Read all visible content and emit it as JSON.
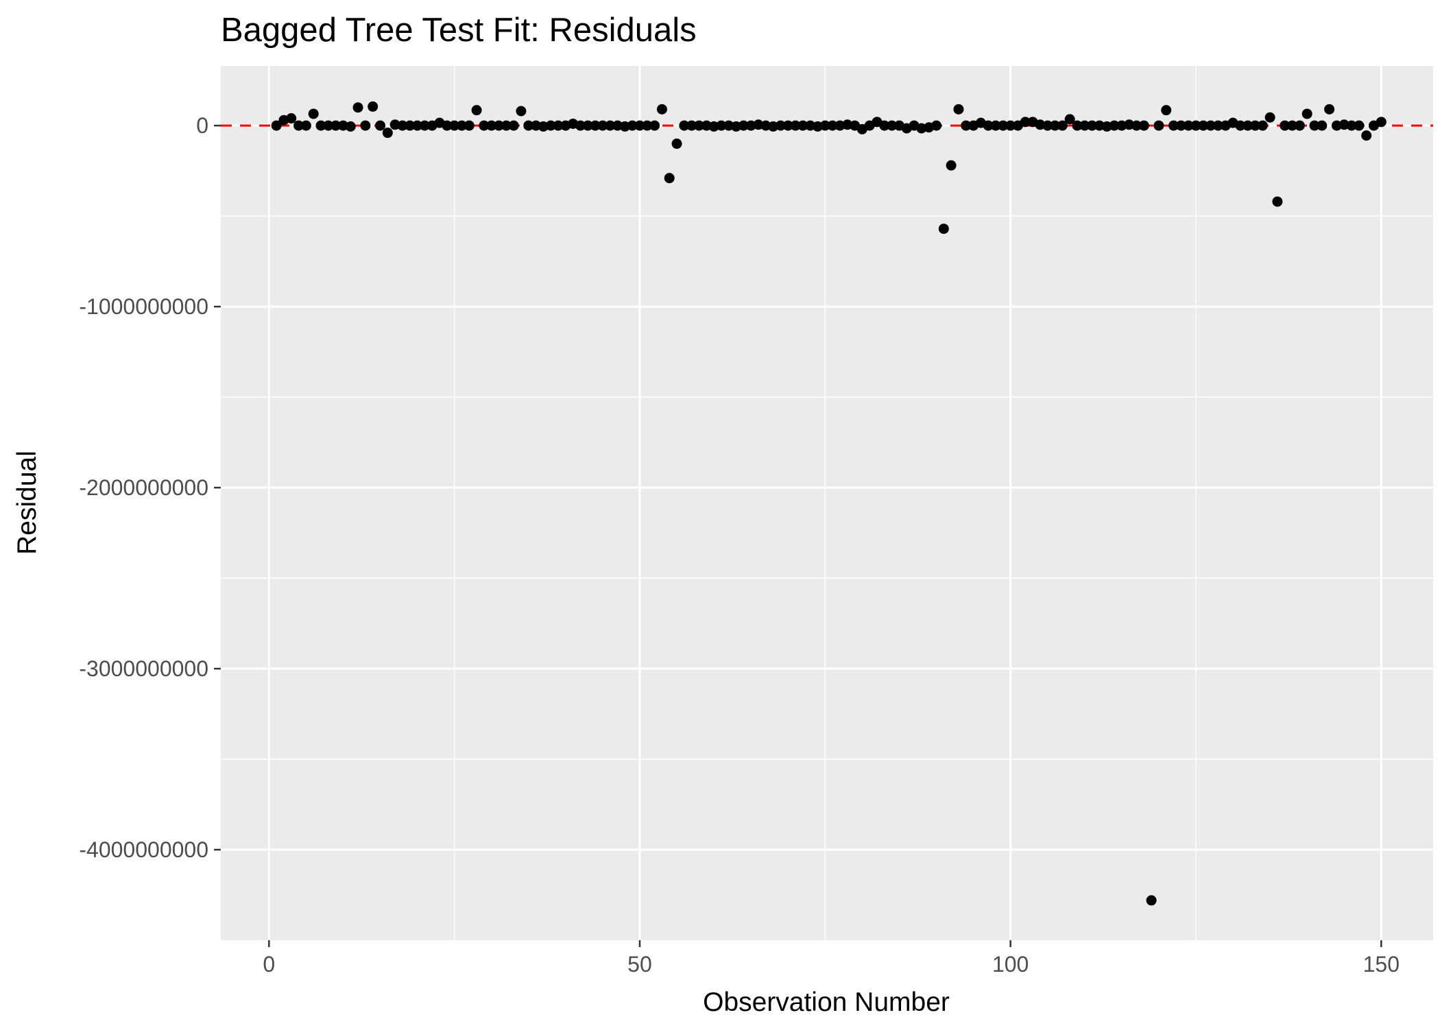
{
  "chart_data": {
    "type": "scatter",
    "title": "Bagged Tree Test Fit: Residuals",
    "xlabel": "Observation Number",
    "ylabel": "Residual",
    "xlim": [
      -6.5,
      157
    ],
    "ylim": [
      -4500000000,
      330000000
    ],
    "x_ticks": [
      0,
      50,
      100,
      150
    ],
    "x_tick_labels": [
      "0",
      "50",
      "100",
      "150"
    ],
    "y_ticks": [
      0,
      -1000000000,
      -2000000000,
      -3000000000,
      -4000000000
    ],
    "y_tick_labels": [
      "0",
      "-1000000000",
      "-2000000000",
      "-3000000000",
      "-4000000000"
    ],
    "reference_line": {
      "y": 0,
      "color": "#ff0000",
      "style": "dashed"
    },
    "grid": true,
    "colors": {
      "panel": "#ebebeb",
      "grid": "#ffffff",
      "points": "#000000"
    },
    "points": [
      [
        1,
        0
      ],
      [
        2,
        30000000
      ],
      [
        3,
        40000000
      ],
      [
        4,
        0
      ],
      [
        5,
        0
      ],
      [
        6,
        65000000
      ],
      [
        7,
        0
      ],
      [
        8,
        0
      ],
      [
        9,
        0
      ],
      [
        10,
        0
      ],
      [
        11,
        -5000000
      ],
      [
        12,
        100000000
      ],
      [
        13,
        0
      ],
      [
        14,
        105000000
      ],
      [
        15,
        0
      ],
      [
        16,
        -40000000
      ],
      [
        17,
        5000000
      ],
      [
        18,
        0
      ],
      [
        19,
        0
      ],
      [
        20,
        0
      ],
      [
        21,
        0
      ],
      [
        22,
        0
      ],
      [
        23,
        15000000
      ],
      [
        24,
        0
      ],
      [
        25,
        0
      ],
      [
        26,
        0
      ],
      [
        27,
        0
      ],
      [
        28,
        85000000
      ],
      [
        29,
        0
      ],
      [
        30,
        0
      ],
      [
        31,
        0
      ],
      [
        32,
        0
      ],
      [
        33,
        0
      ],
      [
        34,
        80000000
      ],
      [
        35,
        0
      ],
      [
        36,
        0
      ],
      [
        37,
        -5000000
      ],
      [
        38,
        0
      ],
      [
        39,
        0
      ],
      [
        40,
        0
      ],
      [
        41,
        10000000
      ],
      [
        42,
        0
      ],
      [
        43,
        0
      ],
      [
        44,
        0
      ],
      [
        45,
        0
      ],
      [
        46,
        0
      ],
      [
        47,
        0
      ],
      [
        48,
        -5000000
      ],
      [
        49,
        0
      ],
      [
        50,
        0
      ],
      [
        51,
        0
      ],
      [
        52,
        0
      ],
      [
        53,
        90000000
      ],
      [
        54,
        -290000000
      ],
      [
        55,
        -100000000
      ],
      [
        56,
        0
      ],
      [
        57,
        0
      ],
      [
        58,
        0
      ],
      [
        59,
        0
      ],
      [
        60,
        -5000000
      ],
      [
        61,
        0
      ],
      [
        62,
        0
      ],
      [
        63,
        -5000000
      ],
      [
        64,
        0
      ],
      [
        65,
        0
      ],
      [
        66,
        5000000
      ],
      [
        67,
        0
      ],
      [
        68,
        -5000000
      ],
      [
        69,
        0
      ],
      [
        70,
        0
      ],
      [
        71,
        0
      ],
      [
        72,
        0
      ],
      [
        73,
        0
      ],
      [
        74,
        -5000000
      ],
      [
        75,
        0
      ],
      [
        76,
        0
      ],
      [
        77,
        0
      ],
      [
        78,
        5000000
      ],
      [
        79,
        0
      ],
      [
        80,
        -20000000
      ],
      [
        81,
        0
      ],
      [
        82,
        20000000
      ],
      [
        83,
        0
      ],
      [
        84,
        0
      ],
      [
        85,
        0
      ],
      [
        86,
        -15000000
      ],
      [
        87,
        0
      ],
      [
        88,
        -15000000
      ],
      [
        89,
        -10000000
      ],
      [
        90,
        0
      ],
      [
        91,
        -570000000
      ],
      [
        92,
        -220000000
      ],
      [
        93,
        90000000
      ],
      [
        94,
        0
      ],
      [
        95,
        0
      ],
      [
        96,
        15000000
      ],
      [
        97,
        0
      ],
      [
        98,
        0
      ],
      [
        99,
        0
      ],
      [
        100,
        0
      ],
      [
        101,
        0
      ],
      [
        102,
        20000000
      ],
      [
        103,
        20000000
      ],
      [
        104,
        5000000
      ],
      [
        105,
        0
      ],
      [
        106,
        0
      ],
      [
        107,
        0
      ],
      [
        108,
        35000000
      ],
      [
        109,
        0
      ],
      [
        110,
        0
      ],
      [
        111,
        0
      ],
      [
        112,
        0
      ],
      [
        113,
        -5000000
      ],
      [
        114,
        0
      ],
      [
        115,
        0
      ],
      [
        116,
        5000000
      ],
      [
        117,
        0
      ],
      [
        118,
        0
      ],
      [
        119,
        -4280000000
      ],
      [
        120,
        0
      ],
      [
        121,
        85000000
      ],
      [
        122,
        0
      ],
      [
        123,
        0
      ],
      [
        124,
        0
      ],
      [
        125,
        0
      ],
      [
        126,
        0
      ],
      [
        127,
        0
      ],
      [
        128,
        0
      ],
      [
        129,
        0
      ],
      [
        130,
        15000000
      ],
      [
        131,
        0
      ],
      [
        132,
        0
      ],
      [
        133,
        0
      ],
      [
        134,
        0
      ],
      [
        135,
        45000000
      ],
      [
        136,
        -420000000
      ],
      [
        137,
        0
      ],
      [
        138,
        0
      ],
      [
        139,
        0
      ],
      [
        140,
        65000000
      ],
      [
        141,
        0
      ],
      [
        142,
        0
      ],
      [
        143,
        90000000
      ],
      [
        144,
        0
      ],
      [
        145,
        5000000
      ],
      [
        146,
        0
      ],
      [
        147,
        0
      ],
      [
        148,
        -55000000
      ],
      [
        149,
        0
      ],
      [
        150,
        20000000
      ]
    ]
  }
}
